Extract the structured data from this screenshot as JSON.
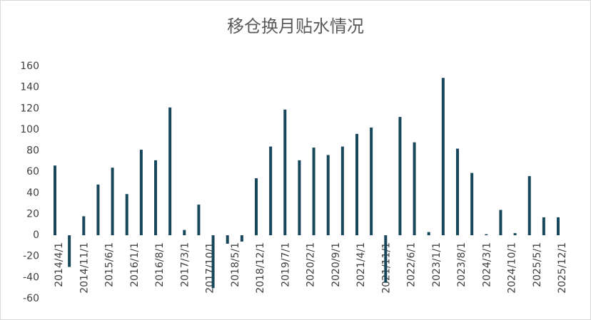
{
  "chart_data": {
    "type": "bar",
    "title": "移仓换月贴水情况",
    "x": [
      "2014/4/1",
      "2014/8/1",
      "2014/12/1",
      "2015/4/1",
      "2015/8/1",
      "2015/12/1",
      "2016/4/1",
      "2016/8/1",
      "2016/12/1",
      "2017/4/1",
      "2017/8/1",
      "2017/12/1",
      "2018/4/1",
      "2018/8/1",
      "2018/12/1",
      "2019/4/1",
      "2019/8/1",
      "2019/12/1",
      "2020/4/1",
      "2020/8/1",
      "2020/12/1",
      "2021/4/1",
      "2021/8/1",
      "2021/12/1",
      "2022/4/1",
      "2022/8/1",
      "2022/12/1",
      "2023/4/1",
      "2023/8/1",
      "2023/12/1",
      "2024/4/1",
      "2024/8/1",
      "2024/12/1",
      "2025/4/1",
      "2025/8/1",
      "2025/12/1"
    ],
    "values": [
      66,
      -30,
      18,
      48,
      64,
      39,
      81,
      71,
      121,
      5,
      29,
      -50,
      -8,
      -6,
      54,
      84,
      119,
      71,
      83,
      76,
      84,
      96,
      102,
      -45,
      112,
      88,
      3,
      149,
      82,
      59,
      1,
      24,
      2,
      56,
      17,
      17
    ],
    "color": "#17475a",
    "xlim": [
      "2014/4/1",
      "2025/12/1"
    ],
    "xticks": [
      "2014/4/1",
      "2014/11/1",
      "2015/6/1",
      "2016/1/1",
      "2016/8/1",
      "2017/3/1",
      "2017/10/1",
      "2018/5/1",
      "2018/12/1",
      "2019/7/1",
      "2020/2/1",
      "2020/9/1",
      "2021/4/1",
      "2021/11/1",
      "2022/6/1",
      "2023/1/1",
      "2023/8/1",
      "2024/3/1",
      "2024/10/1",
      "2025/5/1",
      "2025/12/1"
    ],
    "ylim": [
      -60,
      160
    ],
    "yticks": [
      -60,
      -40,
      -20,
      0,
      20,
      40,
      60,
      80,
      100,
      120,
      140,
      160
    ],
    "grid": false
  }
}
